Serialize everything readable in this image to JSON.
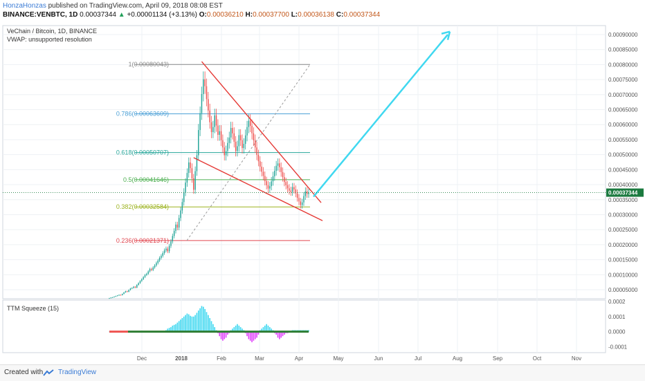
{
  "header": {
    "author": "HonzaHonzas",
    "published_text": "published on TradingView.com, April 09, 2018 08:08 EST",
    "symbol": "BINANCE:VENBTC, 1D",
    "price": "0.00037344",
    "change": "+0.00001134 (+3.13%)",
    "o_label": "O:",
    "o_value": "0.00036210",
    "h_label": "H:",
    "h_value": "0.00037700",
    "l_label": "L:",
    "l_value": "0.00036138",
    "c_label": "C:",
    "c_value": "0.00037344"
  },
  "legend": {
    "title": "VeChain / Bitcoin, 1D, BINANCE",
    "vwap": "VWAP: unsupported resolution",
    "indicator": "TTM Squeeze (15)"
  },
  "footer": {
    "created": "Created with",
    "brand": "TradingView"
  },
  "colors": {
    "up": "#26a69a",
    "down": "#ef5350",
    "trend": "#e53935",
    "arrow": "#40d8f0",
    "hist_pos": "#40d8f0",
    "hist_neg": "#e040fb",
    "price_tag": "#1b7a3f"
  },
  "chart_data": [
    {
      "type": "candlestick",
      "title": "VeChain / Bitcoin, 1D, BINANCE",
      "x_tick_labels": [
        "Dec",
        "2018",
        "Feb",
        "Mar",
        "Apr",
        "May",
        "Jun",
        "Jul",
        "Aug",
        "Sep",
        "Oct",
        "Nov"
      ],
      "y_tick_labels": [
        "0.00090000",
        "0.00085000",
        "0.00080000",
        "0.00075000",
        "0.00070000",
        "0.00065000",
        "0.00060000",
        "0.00055000",
        "0.00050000",
        "0.00045000",
        "0.00040000",
        "0.00035000",
        "0.00030000",
        "0.00025000",
        "0.00020000",
        "0.00015000",
        "0.00010000",
        "0.00005000"
      ],
      "y_ticks": [
        0.0009,
        0.00085,
        0.0008,
        0.00075,
        0.0007,
        0.00065,
        0.0006,
        0.00055,
        0.0005,
        0.00045,
        0.0004,
        0.00035,
        0.0003,
        0.00025,
        0.0002,
        0.00015,
        0.0001,
        5e-05
      ],
      "ylim": [
        2e-05,
        0.00093
      ],
      "last_price_label": "0.00037344",
      "last_price": 0.00037344,
      "closes": [
        2.2e-05,
        2.4e-05,
        2.5e-05,
        2.7e-05,
        2.9e-05,
        3.1e-05,
        3.3e-05,
        3.2e-05,
        3.6e-05,
        4.1e-05,
        4.5e-05,
        4.3e-05,
        4.9e-05,
        5.4e-05,
        5.6e-05,
        6e-05,
        5.7e-05,
        6.6e-05,
        7.2e-05,
        7.9e-05,
        8.5e-05,
        9.2e-05,
        9.9e-05,
        0.000103,
        0.000111,
        0.000119,
        0.000116,
        0.000124,
        0.000131,
        0.000139,
        0.000147,
        0.000156,
        0.000163,
        0.000172,
        0.000181,
        0.000187,
        0.000178,
        0.000196,
        0.000211,
        0.000229,
        0.000246,
        0.000267,
        0.000257,
        0.000289,
        0.000314,
        0.000342,
        0.000375,
        0.000407,
        0.000439,
        0.000474,
        0.000455,
        0.000421,
        0.000383,
        0.000445,
        0.000498,
        0.000582,
        0.000638,
        0.000702,
        0.000751,
        0.000728,
        0.000685,
        0.000647,
        0.000608,
        0.000575,
        0.000592,
        0.000631,
        0.000597,
        0.000566,
        0.000578,
        0.000548,
        0.000524,
        0.000498,
        0.000512,
        0.000539,
        0.000557,
        0.000589,
        0.000571,
        0.000543,
        0.000512,
        0.000528,
        0.000565,
        0.000548,
        0.000522,
        0.000536,
        0.000564,
        0.000592,
        0.000613,
        0.000596,
        0.000571,
        0.000548,
        0.000524,
        0.000499,
        0.000478,
        0.00046,
        0.000443,
        0.000429,
        0.000412,
        0.000398,
        0.000387,
        0.000395,
        0.000411,
        0.000428,
        0.000446,
        0.000463,
        0.000471,
        0.000458,
        0.000442,
        0.000425,
        0.000409,
        0.000398,
        0.000388,
        0.00038,
        0.000376,
        0.000392,
        0.000384,
        0.000371,
        0.000356,
        0.000344,
        0.000332,
        0.000341,
        0.000362,
        0.000378,
        0.000369,
        0.000373
      ],
      "fibonacci_levels": [
        {
          "label": "1(0.00080043)",
          "value": 0.00080043,
          "color": "#888888"
        },
        {
          "label": "0.786(0.00063609)",
          "value": 0.00063609,
          "color": "#4a9fd6"
        },
        {
          "label": "0.618(0.00050707)",
          "value": 0.00050707,
          "color": "#26a69a"
        },
        {
          "label": "0.5(0.00041646)",
          "value": 0.00041646,
          "color": "#4caf50"
        },
        {
          "label": "0.382(0.00032584)",
          "value": 0.00032584,
          "color": "#9bb21d"
        },
        {
          "label": "0.236(0.00021371)",
          "value": 0.00021371,
          "color": "#e0464f"
        }
      ]
    },
    {
      "type": "bar",
      "title": "TTM Squeeze (15)",
      "y_tick_labels": [
        "0.0002",
        "0.0001",
        "0.0000",
        "-0.0001"
      ],
      "y_ticks": [
        0.0002,
        0.0001,
        0.0,
        -0.0001
      ],
      "ylim": [
        -0.00013,
        0.0002
      ],
      "values": [
        0.0,
        0.0,
        0.0,
        0.0,
        0.0,
        0.0,
        0.0,
        0.0,
        0.0,
        0.0,
        0.0,
        0.0,
        0.0,
        0.0,
        0.0,
        0.0,
        0.0,
        0.0,
        0.0,
        0.0,
        0.0,
        0.0,
        0.0,
        0.0,
        0.0,
        0.0,
        0.0,
        0.0,
        0.0,
        0.0,
        0.0,
        0.0,
        0.0,
        0.0,
        0.0,
        1e-05,
        2e-05,
        2.5e-05,
        3e-05,
        4e-05,
        4.5e-05,
        5e-05,
        6e-05,
        7e-05,
        8e-05,
        9e-05,
        0.0001,
        0.00011,
        0.00012,
        0.000115,
        0.000105,
        0.0001,
        0.0001,
        0.00011,
        0.000125,
        0.00014,
        0.000155,
        0.00017,
        0.000165,
        0.00015,
        0.00013,
        0.00011,
        9e-05,
        7e-05,
        5e-05,
        3e-05,
        1e-05,
        -1e-05,
        -3e-05,
        -5e-05,
        -6e-05,
        -5e-05,
        -4e-05,
        -2e-05,
        -1e-05,
        1e-05,
        2e-05,
        3e-05,
        4e-05,
        5e-05,
        4e-05,
        3e-05,
        2e-05,
        1e-05,
        -1e-05,
        -3e-05,
        -5e-05,
        -6e-05,
        -7e-05,
        -6e-05,
        -5e-05,
        -4e-05,
        -2e-05,
        1e-05,
        2e-05,
        3e-05,
        4e-05,
        5e-05,
        4e-05,
        3e-05,
        2e-05,
        1e-05,
        -1e-05,
        -2e-05,
        -4e-05,
        -5e-05,
        -4e-05,
        -3e-05,
        -2e-05,
        -1e-05,
        -1e-05,
        0.0,
        0.0,
        1e-05,
        1e-05,
        1e-05,
        1e-05,
        1e-05,
        1e-05,
        1e-05,
        1e-05,
        1e-05,
        1e-05,
        1e-05
      ]
    }
  ]
}
